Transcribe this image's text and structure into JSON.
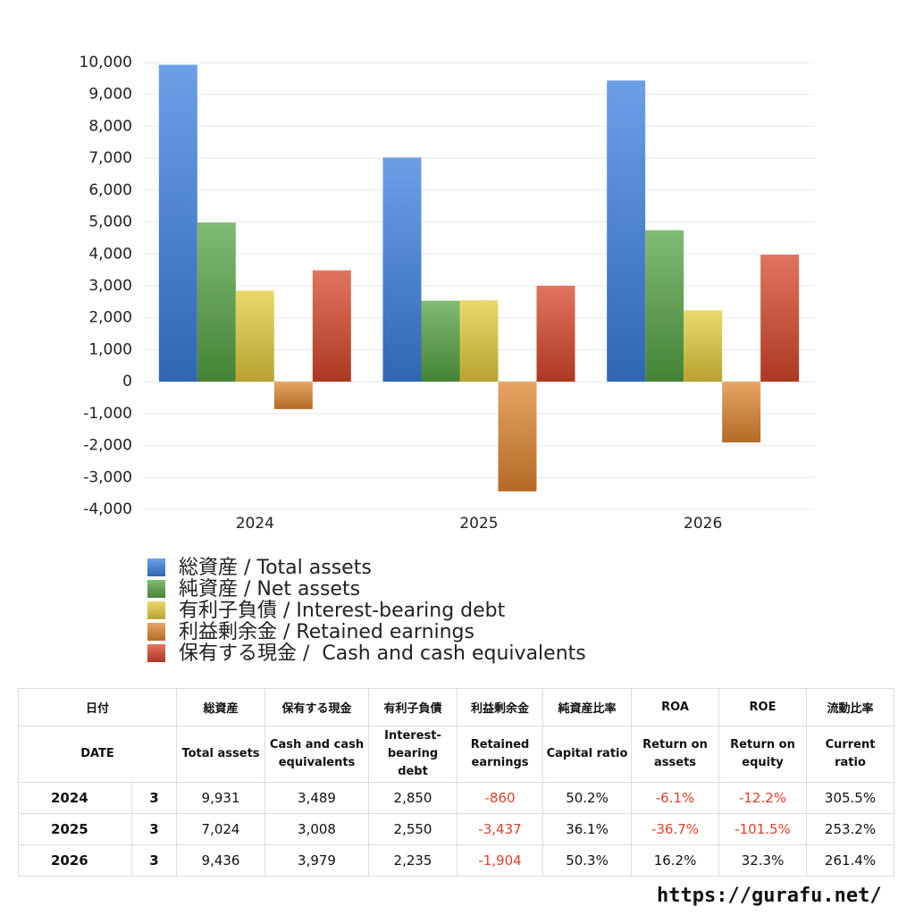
{
  "chart_data": {
    "type": "bar",
    "categories": [
      "2024",
      "2025",
      "2026"
    ],
    "series": [
      {
        "name": "総資産 / Total assets",
        "color": "#3b7fe0",
        "values": [
          9931,
          7024,
          9436
        ]
      },
      {
        "name": "純資産 / Net assets",
        "color": "#55a444",
        "values": [
          4985,
          2536,
          4746
        ]
      },
      {
        "name": "有利子負債 / Interest-bearing debt",
        "color": "#e6cc3c",
        "values": [
          2850,
          2550,
          2235
        ]
      },
      {
        "name": "利益剰余金 / Retained earnings",
        "color": "#e08630",
        "values": [
          -860,
          -3437,
          -1904
        ]
      },
      {
        "name": "保有する現金 /  Cash and cash equivalents",
        "color": "#d8462a",
        "values": [
          3489,
          3008,
          3979
        ]
      }
    ],
    "ylim": [
      -4000,
      10000
    ],
    "yticks": [
      {
        "value": -4000,
        "label": "-4,000"
      },
      {
        "value": -3000,
        "label": "-3,000"
      },
      {
        "value": -2000,
        "label": "-2,000"
      },
      {
        "value": -1000,
        "label": "-1,000"
      },
      0,
      {
        "value": 1000,
        "label": "1,000"
      },
      {
        "value": 2000,
        "label": "2,000"
      },
      {
        "value": 3000,
        "label": "3,000"
      },
      {
        "value": 4000,
        "label": "4,000"
      },
      {
        "value": 5000,
        "label": "5,000"
      },
      {
        "value": 6000,
        "label": "6,000"
      },
      {
        "value": 7000,
        "label": "7,000"
      },
      {
        "value": 8000,
        "label": "8,000"
      },
      {
        "value": 9000,
        "label": "9,000"
      },
      {
        "value": 10000,
        "label": "10,000"
      }
    ],
    "grid": true
  },
  "table": {
    "header_ja": [
      "日付",
      "総資産",
      "保有する現金",
      "有利子負債",
      "利益剰余金",
      "純資産比率",
      "ROA",
      "ROE",
      "流動比率"
    ],
    "header_en": [
      "DATE",
      "Total assets",
      "Cash and cash equivalents",
      "Interest-bearing debt",
      "Retained earnings",
      "Capital ratio",
      "Return on assets",
      "Return on equity",
      "Current ratio"
    ],
    "rows": [
      [
        "2024",
        "3",
        "9,931",
        "3,489",
        "2,850",
        "-860",
        "50.2%",
        "-6.1%",
        "-12.2%",
        "305.5%"
      ],
      [
        "2025",
        "3",
        "7,024",
        "3,008",
        "2,550",
        "-3,437",
        "36.1%",
        "-36.7%",
        "-101.5%",
        "253.2%"
      ],
      [
        "2026",
        "3",
        "9,436",
        "3,979",
        "2,235",
        "-1,904",
        "50.3%",
        "16.2%",
        "32.3%",
        "261.4%"
      ]
    ]
  },
  "footer": {
    "url": "https://gurafu.net/"
  }
}
